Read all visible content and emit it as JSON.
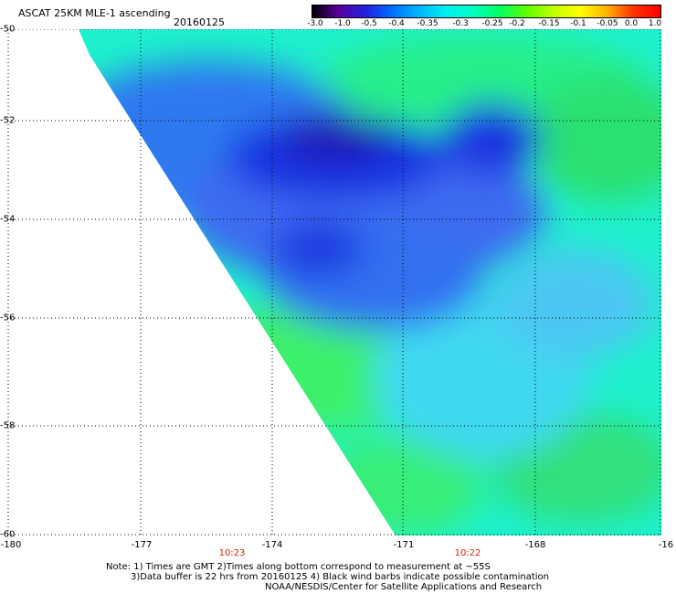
{
  "header": {
    "title": "ASCAT 25KM MLE-1 ascending",
    "date": "20160125"
  },
  "colorbar": {
    "labels": [
      "-3.0",
      "-1.0",
      "-0.5",
      "-0.4",
      "-0.35",
      "-0.3",
      "-0.25",
      "-0.2",
      "-0.15",
      "-0.1",
      "-0.05",
      "0.0",
      "1.0"
    ],
    "colors": [
      "#000000",
      "#5b00a0",
      "#2020e0",
      "#0070ff",
      "#00b8ff",
      "#00f0f0",
      "#00ffc0",
      "#00ff60",
      "#60ff00",
      "#c0ff00",
      "#ffff00",
      "#ffb000",
      "#ff3000",
      "#ff0000"
    ]
  },
  "axes": {
    "y_labels": [
      "-50",
      "-52",
      "-54",
      "-56",
      "-58",
      "-60"
    ],
    "x_labels": [
      "-180",
      "-177",
      "-174",
      "-171",
      "-168",
      "-16"
    ]
  },
  "times": [
    "10:23",
    "10:22"
  ],
  "notes": [
    "Note: 1) Times are GMT 2)Times along bottom correspond to measurement at ~55S",
    "3)Data buffer is 22 hrs from 20160125 4) Black wind barbs indicate possible contamination",
    "NOAA/NESDIS/Center for Satellite Applications and Research"
  ]
}
